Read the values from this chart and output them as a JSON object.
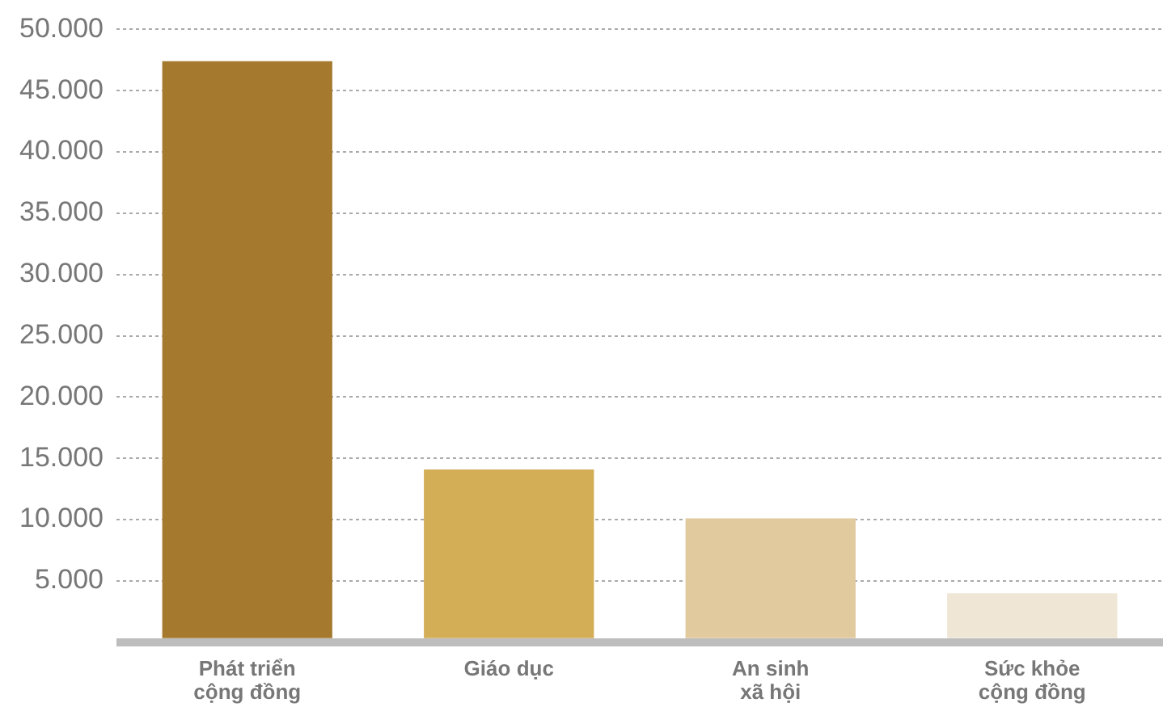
{
  "chart_data": {
    "type": "bar",
    "categories": [
      "Phát triển cộng đồng",
      "Giáo dục",
      "An sinh xã hội",
      "Sức khỏe cộng đồng"
    ],
    "values": [
      47400,
      14100,
      10100,
      4000
    ],
    "colors": [
      "#a57a2f",
      "#d4ae57",
      "#e2ca9f",
      "#efe6d6"
    ],
    "ylim": [
      0,
      50000
    ],
    "yticks": [
      {
        "value": 0,
        "label": null
      },
      {
        "value": 5000,
        "label": "5.000"
      },
      {
        "value": 10000,
        "label": "10.000"
      },
      {
        "value": 15000,
        "label": "15.000"
      },
      {
        "value": 20000,
        "label": "20.000"
      },
      {
        "value": 25000,
        "label": "25.000"
      },
      {
        "value": 30000,
        "label": "30.000"
      },
      {
        "value": 35000,
        "label": "35.000"
      },
      {
        "value": 40000,
        "label": "40.000"
      },
      {
        "value": 45000,
        "label": "45.000"
      },
      {
        "value": 50000,
        "label": "50.000"
      }
    ],
    "grid": "y"
  }
}
